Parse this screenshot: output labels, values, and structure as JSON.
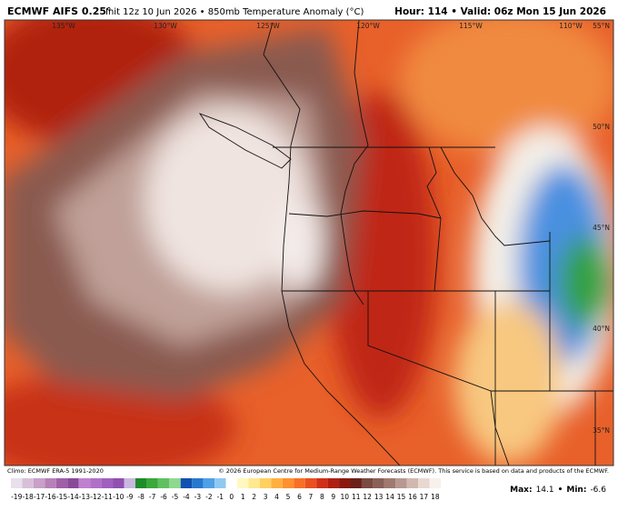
{
  "header": {
    "model": "ECMWF AIFS 0.25°",
    "run": "Init 12z 10 Jun 2026 • 850mb Temperature Anomaly (°C)",
    "valid": "Hour: 114 • Valid: 06z Mon 15 Jun 2026"
  },
  "map": {
    "lon_labels": [
      "135°W",
      "130°W",
      "125°W",
      "120°W",
      "115°W",
      "110°W"
    ],
    "lat_labels": [
      "55°N",
      "50°N",
      "45°N",
      "40°N",
      "35°N"
    ]
  },
  "footer": {
    "climo": "Climo: ECMWF ERA-5 1991-2020",
    "credit": "© 2026 European Centre for Medium-Range Weather Forecasts (ECMWF). This service is based on data and products of the ECMWF."
  },
  "colorbar": {
    "ticks": [
      -19,
      -18,
      -17,
      -16,
      -15,
      -14,
      -13,
      -12,
      -11,
      -10,
      -9,
      -8,
      -7,
      -6,
      -5,
      -4,
      -3,
      -2,
      -1,
      0,
      1,
      2,
      3,
      4,
      5,
      6,
      7,
      8,
      9,
      10,
      11,
      12,
      13,
      14,
      15,
      16,
      17,
      18
    ],
    "colors": [
      "#e8e0ec",
      "#d8c0d8",
      "#c8a0c8",
      "#b880b8",
      "#a060a8",
      "#8a4a98",
      "#c080d0",
      "#b070c8",
      "#a060c0",
      "#9050b0",
      "#c8b8e0",
      "#1e8c2a",
      "#3aa83a",
      "#60c060",
      "#90d890",
      "#1050b0",
      "#2878d0",
      "#50a0e8",
      "#90c8f0",
      "#ffffff",
      "#fff8c0",
      "#ffe890",
      "#ffd060",
      "#ffb040",
      "#ff9030",
      "#f87028",
      "#e85020",
      "#d03018",
      "#b02010",
      "#8a1a10",
      "#6a2018",
      "#7a4a40",
      "#8a6058",
      "#a07a70",
      "#b89890",
      "#d0b8b0",
      "#e8d8d0",
      "#f8f0ec"
    ]
  },
  "stats": {
    "max_label": "Max:",
    "max": 14.1,
    "min_label": "Min:",
    "min": -6.6
  }
}
